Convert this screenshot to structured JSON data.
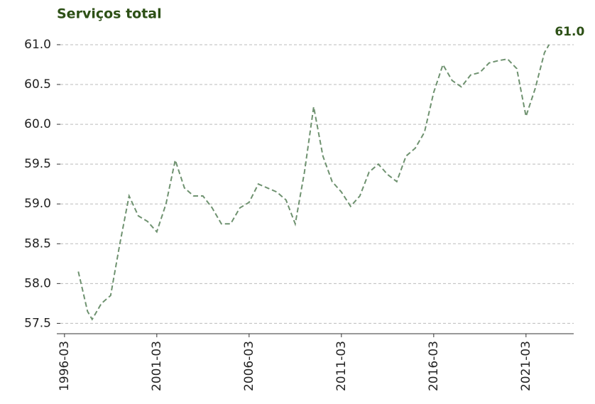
{
  "chart_data": {
    "type": "line",
    "title": "Serviços total",
    "x": [
      "1996-12",
      "1997-06",
      "1997-09",
      "1998-03",
      "1998-09",
      "1999-03",
      "1999-09",
      "2000-03",
      "2000-09",
      "2001-03",
      "2001-09",
      "2002-03",
      "2002-09",
      "2003-03",
      "2003-09",
      "2004-03",
      "2004-09",
      "2005-03",
      "2005-09",
      "2006-03",
      "2006-09",
      "2007-03",
      "2007-09",
      "2008-03",
      "2008-09",
      "2009-03",
      "2009-09",
      "2010-03",
      "2010-09",
      "2011-03",
      "2011-09",
      "2012-03",
      "2012-09",
      "2013-03",
      "2013-09",
      "2014-03",
      "2014-09",
      "2015-03",
      "2015-09",
      "2016-03",
      "2016-09",
      "2017-03",
      "2017-09",
      "2018-03",
      "2018-09",
      "2019-03",
      "2019-09",
      "2020-03",
      "2020-09",
      "2021-03",
      "2021-09",
      "2022-03",
      "2022-06"
    ],
    "series": [
      {
        "name": "Serviços total",
        "color": "#6f9270",
        "values": [
          58.15,
          57.65,
          57.55,
          57.75,
          57.85,
          58.5,
          59.1,
          58.85,
          58.78,
          58.65,
          59.0,
          59.55,
          59.2,
          59.1,
          59.1,
          58.95,
          58.75,
          58.75,
          58.95,
          59.02,
          59.25,
          59.2,
          59.15,
          59.05,
          58.75,
          59.4,
          60.22,
          59.6,
          59.28,
          59.15,
          58.97,
          59.1,
          59.4,
          59.5,
          59.37,
          59.28,
          59.6,
          59.7,
          59.9,
          60.4,
          60.75,
          60.55,
          60.47,
          60.62,
          60.65,
          60.77,
          60.8,
          60.82,
          60.7,
          60.1,
          60.45,
          60.9,
          61.0
        ]
      }
    ],
    "annotation": "61.0",
    "xlim": [
      "1995-10",
      "2023-10"
    ],
    "xticks": [
      "1996-03",
      "2001-03",
      "2006-03",
      "2011-03",
      "2016-03",
      "2021-03"
    ],
    "ylim": [
      57.37,
      61.16
    ],
    "yticks": [
      57.5,
      {
        "value": 58,
        "label": "58.0"
      },
      58.5,
      {
        "value": 59,
        "label": "59.0"
      },
      59.5,
      {
        "value": 60,
        "label": "60.0"
      },
      60.5,
      {
        "value": 61,
        "label": "61.0"
      }
    ],
    "grid": true
  }
}
